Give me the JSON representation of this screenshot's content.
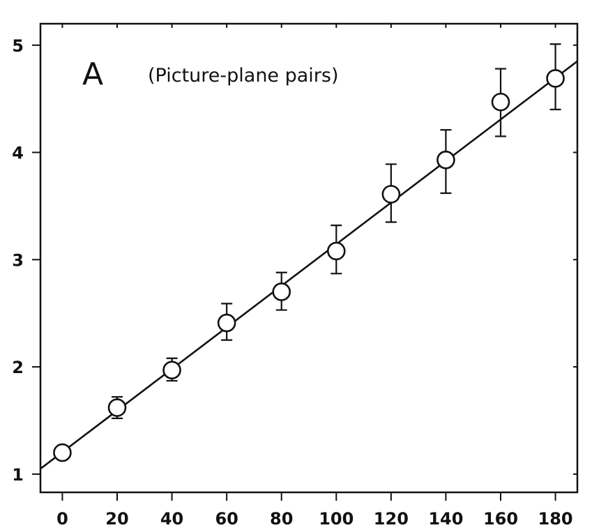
{
  "chart_data": {
    "type": "scatter",
    "panel_label": "A",
    "title": "(Picture-plane pairs)",
    "xlabel": "",
    "ylabel": "",
    "xlim": [
      -8,
      188
    ],
    "ylim": [
      0.83,
      5.2
    ],
    "xticks": [
      0,
      20,
      40,
      60,
      80,
      100,
      120,
      140,
      160,
      180
    ],
    "yticks": [
      1,
      2,
      3,
      4,
      5
    ],
    "grid": false,
    "series": [
      {
        "points": [
          {
            "x": 0,
            "y": 1.2,
            "err_low": 1.2,
            "err_high": 1.2
          },
          {
            "x": 20,
            "y": 1.62,
            "err_low": 1.52,
            "err_high": 1.72
          },
          {
            "x": 40,
            "y": 1.97,
            "err_low": 1.87,
            "err_high": 2.08
          },
          {
            "x": 60,
            "y": 2.41,
            "err_low": 2.25,
            "err_high": 2.59
          },
          {
            "x": 80,
            "y": 2.7,
            "err_low": 2.53,
            "err_high": 2.88
          },
          {
            "x": 100,
            "y": 3.08,
            "err_low": 2.87,
            "err_high": 3.32
          },
          {
            "x": 120,
            "y": 3.61,
            "err_low": 3.35,
            "err_high": 3.89
          },
          {
            "x": 140,
            "y": 3.93,
            "err_low": 3.62,
            "err_high": 4.21
          },
          {
            "x": 160,
            "y": 4.47,
            "err_low": 4.15,
            "err_high": 4.78
          },
          {
            "x": 180,
            "y": 4.69,
            "err_low": 4.4,
            "err_high": 5.01
          }
        ]
      }
    ],
    "fit_line": {
      "x": [
        -8,
        188
      ],
      "y": [
        1.05,
        4.85
      ]
    },
    "colors": {
      "ink": "#111111",
      "marker_fill": "#ffffff"
    }
  }
}
